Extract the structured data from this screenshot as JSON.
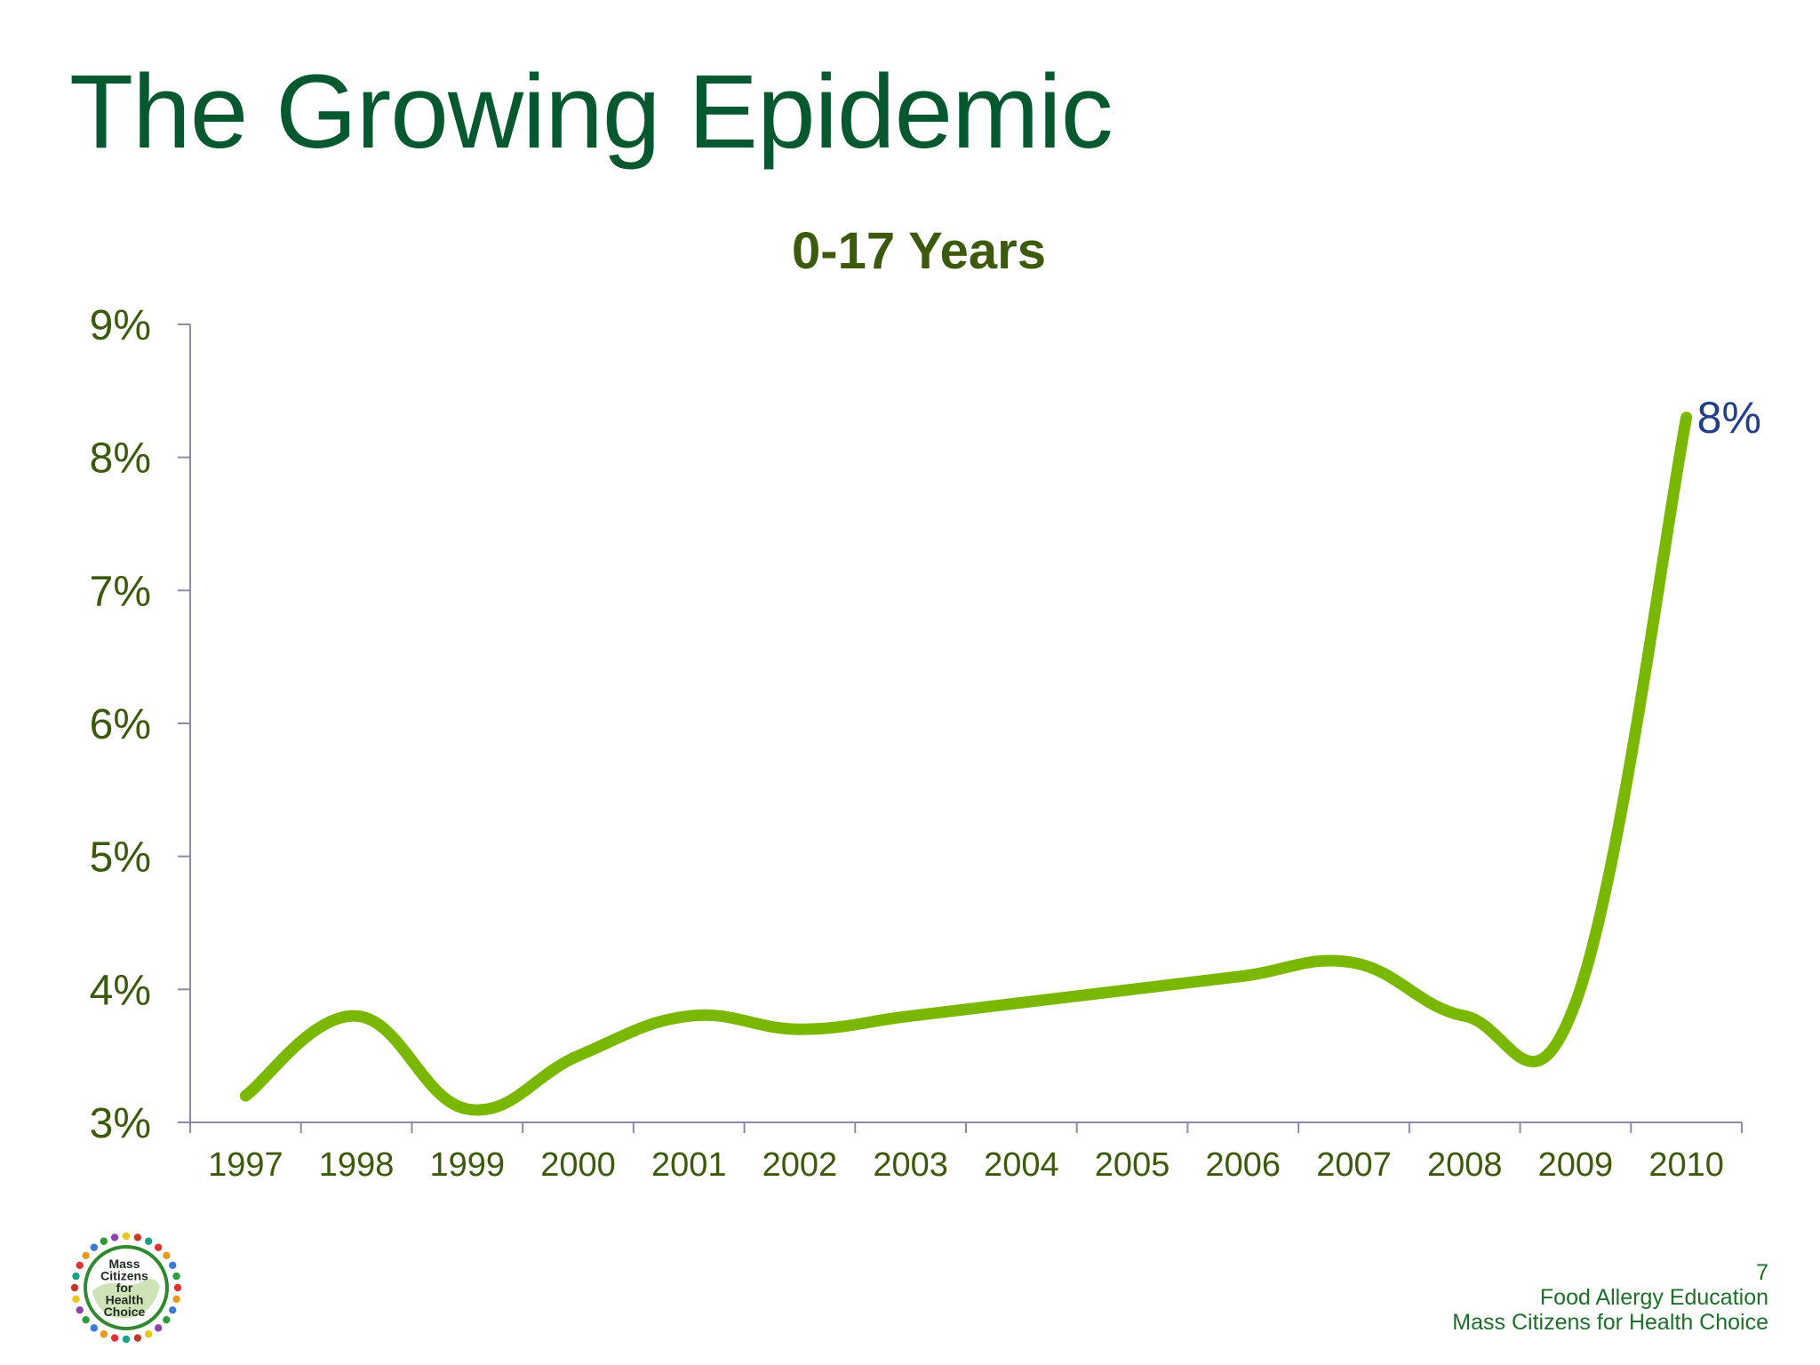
{
  "slide": {
    "title": "The Growing Epidemic",
    "page_number": "7",
    "footer_line1": "Food Allergy Education",
    "footer_line2": "Mass Citizens for Health Choice",
    "logo_text": [
      "Mass",
      "Citizens",
      "for",
      "Health",
      "Choice"
    ]
  },
  "colors": {
    "title": "#06582f",
    "line": "#7ab800",
    "axis_text": "#3c5a0c",
    "data_label": "#213f8c",
    "axis": "#8c8ca8"
  },
  "chart_data": {
    "type": "line",
    "title": "0-17 Years",
    "xlabel": "",
    "ylabel": "",
    "categories": [
      "1997",
      "1998",
      "1999",
      "2000",
      "2001",
      "2002",
      "2003",
      "2004",
      "2005",
      "2006",
      "2007",
      "2008",
      "2009",
      "2010"
    ],
    "series": [
      {
        "values": [
          3.2,
          3.8,
          3.1,
          3.5,
          3.8,
          3.7,
          3.8,
          3.9,
          4.0,
          4.1,
          4.2,
          3.8,
          3.9,
          8.3
        ]
      }
    ],
    "ylim": [
      3,
      9
    ],
    "yticks": [
      "3%",
      "4%",
      "5%",
      "6%",
      "7%",
      "8%",
      "9%"
    ],
    "data_labels": [
      {
        "category": "2010",
        "text": "8%"
      }
    ],
    "grid": false,
    "legend": "none"
  }
}
